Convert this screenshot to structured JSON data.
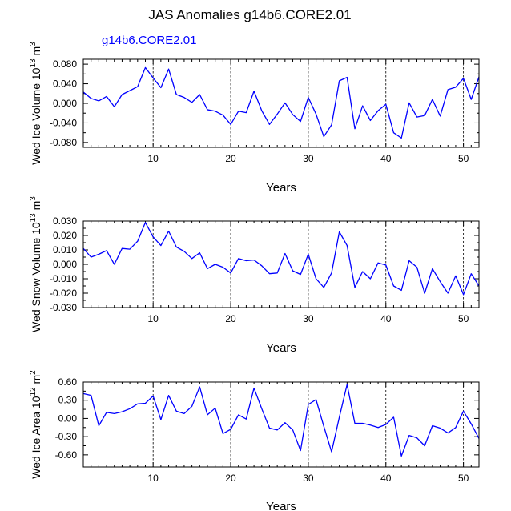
{
  "figure_title": "JAS Anomalies g14b6.CORE2.01",
  "legend_label": "g14b6.CORE2.01",
  "series_color": "#0000ff",
  "chart_data": [
    {
      "type": "line",
      "title": "JAS Anomalies g14b6.CORE2.01",
      "xlabel": "Years",
      "ylabel": "Wed Ice Volume 10",
      "ylabel_exp": "13",
      "ylabel_unit": " m",
      "ylabel_unit_exp": "3",
      "xlim": [
        1,
        52
      ],
      "ylim": [
        -0.09,
        0.09
      ],
      "xticks": [
        10,
        20,
        30,
        40,
        50
      ],
      "xtick_labels": [
        "10",
        "20",
        "30",
        "40",
        "50"
      ],
      "yticks": [
        0.08,
        0.04,
        0.0,
        -0.04,
        -0.08
      ],
      "ytick_labels": [
        "0.080",
        "0.040",
        "0.000",
        "-0.040",
        "-0.080"
      ],
      "grid_x": [
        10,
        20,
        30,
        40,
        50
      ],
      "series": [
        {
          "name": "g14b6.CORE2.01",
          "x": [
            1,
            2,
            3,
            4,
            5,
            6,
            7,
            8,
            9,
            10,
            11,
            12,
            13,
            14,
            15,
            16,
            17,
            18,
            19,
            20,
            21,
            22,
            23,
            24,
            25,
            26,
            27,
            28,
            29,
            30,
            31,
            32,
            33,
            34,
            35,
            36,
            37,
            38,
            39,
            40,
            41,
            42,
            43,
            44,
            45,
            46,
            47,
            48,
            49,
            50,
            51,
            52
          ],
          "values": [
            0.023,
            0.01,
            0.005,
            0.014,
            -0.007,
            0.018,
            0.026,
            0.034,
            0.073,
            0.052,
            0.032,
            0.07,
            0.018,
            0.012,
            0.002,
            0.018,
            -0.013,
            -0.016,
            -0.024,
            -0.043,
            -0.016,
            -0.019,
            0.025,
            -0.015,
            -0.043,
            -0.022,
            0.001,
            -0.023,
            -0.037,
            0.012,
            -0.022,
            -0.068,
            -0.044,
            0.046,
            0.053,
            -0.052,
            -0.005,
            -0.035,
            -0.015,
            -0.002,
            -0.06,
            -0.071,
            0.001,
            -0.028,
            -0.025,
            0.008,
            -0.026,
            0.028,
            0.033,
            0.051,
            0.008,
            0.054
          ]
        }
      ]
    },
    {
      "type": "line",
      "xlabel": "Years",
      "ylabel": "Wed Snow Volume 10",
      "ylabel_exp": "13",
      "ylabel_unit": " m",
      "ylabel_unit_exp": "3",
      "xlim": [
        1,
        52
      ],
      "ylim": [
        -0.03,
        0.03
      ],
      "xticks": [
        10,
        20,
        30,
        40,
        50
      ],
      "xtick_labels": [
        "10",
        "20",
        "30",
        "40",
        "50"
      ],
      "yticks": [
        0.03,
        0.02,
        0.01,
        0.0,
        -0.01,
        -0.02,
        -0.03
      ],
      "ytick_labels": [
        "0.030",
        "0.020",
        "0.010",
        "0.000",
        "-0.010",
        "-0.020",
        "-0.030"
      ],
      "grid_x": [
        10,
        20,
        30,
        40,
        50
      ],
      "series": [
        {
          "name": "g14b6.CORE2.01",
          "x": [
            1,
            2,
            3,
            4,
            5,
            6,
            7,
            8,
            9,
            10,
            11,
            12,
            13,
            14,
            15,
            16,
            17,
            18,
            19,
            20,
            21,
            22,
            23,
            24,
            25,
            26,
            27,
            28,
            29,
            30,
            31,
            32,
            33,
            34,
            35,
            36,
            37,
            38,
            39,
            40,
            41,
            42,
            43,
            44,
            45,
            46,
            47,
            48,
            49,
            50,
            51,
            52
          ],
          "values": [
            0.011,
            0.005,
            0.007,
            0.0095,
            0.0,
            0.011,
            0.0105,
            0.016,
            0.029,
            0.019,
            0.013,
            0.023,
            0.012,
            0.009,
            0.004,
            0.008,
            -0.003,
            0.0,
            -0.002,
            -0.006,
            0.004,
            0.0025,
            0.003,
            -0.001,
            -0.0065,
            -0.006,
            0.0075,
            -0.0045,
            -0.007,
            0.007,
            -0.01,
            -0.016,
            -0.006,
            0.0225,
            0.013,
            -0.016,
            -0.005,
            -0.01,
            0.001,
            -0.0005,
            -0.015,
            -0.018,
            0.0025,
            -0.002,
            -0.02,
            -0.003,
            -0.012,
            -0.02,
            -0.008,
            -0.021,
            -0.0065,
            -0.015
          ]
        }
      ]
    },
    {
      "type": "line",
      "xlabel": "Years",
      "ylabel": "Wed Ice Area 10",
      "ylabel_exp": "12",
      "ylabel_unit": " m",
      "ylabel_unit_exp": "2",
      "xlim": [
        1,
        52
      ],
      "ylim": [
        -0.8,
        0.6
      ],
      "xticks": [
        10,
        20,
        30,
        40,
        50
      ],
      "xtick_labels": [
        "10",
        "20",
        "30",
        "40",
        "50"
      ],
      "yticks": [
        0.6,
        0.3,
        0.0,
        -0.3,
        -0.6
      ],
      "ytick_labels": [
        "0.60",
        "0.30",
        "0.00",
        "-0.30",
        "-0.60"
      ],
      "grid_x": [
        10,
        20,
        30,
        40,
        50
      ],
      "series": [
        {
          "name": "g14b6.CORE2.01",
          "x": [
            1,
            2,
            3,
            4,
            5,
            6,
            7,
            8,
            9,
            10,
            11,
            12,
            13,
            14,
            15,
            16,
            17,
            18,
            19,
            20,
            21,
            22,
            23,
            24,
            25,
            26,
            27,
            28,
            29,
            30,
            31,
            32,
            33,
            34,
            35,
            36,
            37,
            38,
            39,
            40,
            41,
            42,
            43,
            44,
            45,
            46,
            47,
            48,
            49,
            50,
            51,
            52
          ],
          "values": [
            0.41,
            0.38,
            -0.12,
            0.1,
            0.08,
            0.11,
            0.16,
            0.24,
            0.25,
            0.37,
            -0.02,
            0.38,
            0.12,
            0.08,
            0.2,
            0.52,
            0.06,
            0.17,
            -0.25,
            -0.18,
            0.06,
            -0.01,
            0.5,
            0.16,
            -0.16,
            -0.19,
            -0.07,
            -0.19,
            -0.53,
            0.23,
            0.31,
            -0.13,
            -0.55,
            0.02,
            0.56,
            -0.08,
            -0.08,
            -0.11,
            -0.15,
            -0.1,
            0.02,
            -0.62,
            -0.28,
            -0.32,
            -0.45,
            -0.12,
            -0.16,
            -0.24,
            -0.15,
            0.12,
            -0.09,
            -0.33
          ]
        }
      ]
    }
  ]
}
